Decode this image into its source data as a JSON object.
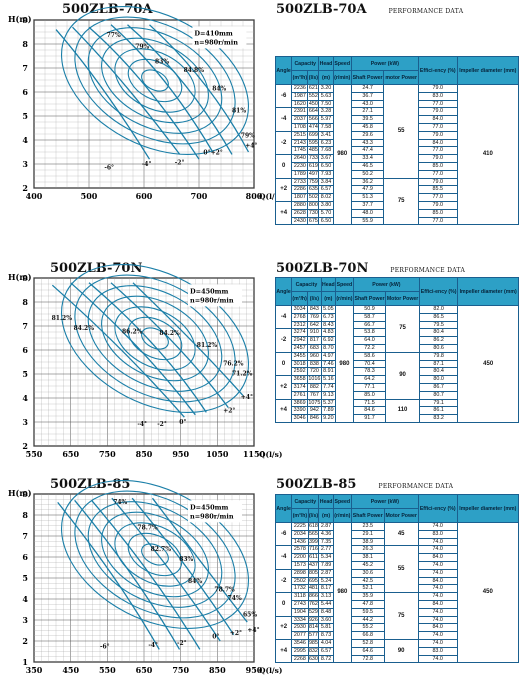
{
  "sections": [
    {
      "id": "s1",
      "model": "500ZLB-70A",
      "perf_label": "PERFORMANCE  DATA",
      "chart_data": {
        "type": "line",
        "title": "500ZLB-70A",
        "xlabel": "Q(l/s)",
        "ylabel": "H(m)",
        "xlim": [
          400,
          800
        ],
        "ylim": [
          2,
          9
        ],
        "xticks": [
          "400",
          "500",
          "600",
          "700",
          "800"
        ],
        "yticks": [
          "2",
          "3",
          "4",
          "5",
          "6",
          "7",
          "8",
          "9"
        ],
        "spec": [
          "D=410mm",
          "n=980r/min"
        ],
        "efficiency_labels": [
          "77%",
          "79%",
          "83%",
          "84.8%",
          "84%",
          "81%",
          "79%"
        ],
        "angle_labels": [
          "+4°",
          "0°+2°",
          "-2°",
          "-4°",
          "-6°"
        ],
        "series": [
          {
            "name": "-6°",
            "x": [
              440,
              520,
              610
            ],
            "y": [
              8.6,
              6.5,
              3.2
            ]
          },
          {
            "name": "-4°",
            "x": [
              470,
              560,
              665
            ],
            "y": [
              8.7,
              6.6,
              3.4
            ]
          },
          {
            "name": "-2°",
            "x": [
              500,
              600,
              700
            ],
            "y": [
              8.7,
              6.7,
              3.2
            ]
          },
          {
            "name": "0°",
            "x": [
              540,
              640,
              725
            ],
            "y": [
              8.8,
              6.8,
              3.5
            ]
          },
          {
            "name": "+2°",
            "x": [
              570,
              680,
              760
            ],
            "y": [
              8.8,
              6.6,
              3.4
            ]
          },
          {
            "name": "+4°",
            "x": [
              610,
              720,
              790
            ],
            "y": [
              8.8,
              6.5,
              3.5
            ]
          }
        ]
      },
      "table": {
        "headers": {
          "angle": "Angle",
          "capacity": "Capacity",
          "cap_unit1": "(m³/h)",
          "cap_unit2": "(l/s)",
          "head": "Head",
          "head_unit": "(m)",
          "speed": "Speed",
          "speed_unit": "(r/min)",
          "power": "Power (kW)",
          "shaft": "Shaft Power",
          "motor": "motor Power",
          "eff": "Effici-ency (%)",
          "dia": "Impeller diameter (mm)"
        },
        "speed": "980",
        "diameter": "410",
        "groups": [
          {
            "angle": "-6",
            "rows": [
              [
                "2236",
                "621",
                "3.20",
                "24.7",
                "79.0"
              ],
              [
                "1987",
                "552",
                "5.63",
                "36.7",
                "83.0"
              ],
              [
                "1620",
                "450",
                "7.50",
                "43.0",
                "77.0"
              ]
            ]
          },
          {
            "angle": "-4",
            "rows": [
              [
                "2391",
                "664",
                "3.28",
                "27.1",
                "79.0"
              ],
              [
                "2037",
                "566",
                "5.97",
                "39.5",
                "84.0"
              ],
              [
                "1708",
                "474",
                "7.58",
                "45.8",
                "77.0"
              ]
            ]
          },
          {
            "angle": "-2",
            "rows": [
              [
                "2515",
                "699",
                "3.41",
                "29.6",
                "79.0"
              ],
              [
                "2143",
                "595",
                "6.23",
                "43.3",
                "84.0"
              ],
              [
                "1745",
                "485",
                "7.68",
                "47.4",
                "77.0"
              ]
            ]
          },
          {
            "angle": "0",
            "rows": [
              [
                "2640",
                "733",
                "3.67",
                "33.4",
                "79.0"
              ],
              [
                "2230",
                "619",
                "6.50",
                "46.5",
                "85.0"
              ],
              [
                "1789",
                "497",
                "7.93",
                "50.2",
                "77.0"
              ]
            ]
          },
          {
            "angle": "+2",
            "rows": [
              [
                "2733",
                "759",
                "3.84",
                "36.2",
                "79.0"
              ],
              [
                "2286",
                "635",
                "6.57",
                "47.9",
                "85.5"
              ],
              [
                "1807",
                "502",
                "8.02",
                "51.3",
                "77.0"
              ]
            ]
          },
          {
            "angle": "+4",
            "rows": [
              [
                "2880",
                "800",
                "3.80",
                "37.7",
                "79.0"
              ],
              [
                "2628",
                "730",
                "5.70",
                "48.0",
                "85.0"
              ],
              [
                "2430",
                "675",
                "6.50",
                "55.9",
                "77.0"
              ]
            ]
          }
        ],
        "motor_groups": [
          {
            "start": 0,
            "span": 12,
            "value": "55"
          },
          {
            "start": 12,
            "span": 6,
            "value": "75"
          }
        ]
      }
    },
    {
      "id": "s2",
      "model": "500ZLB-70N",
      "perf_label": "PERFORMANCE  DATA",
      "chart_data": {
        "type": "line",
        "title": "500ZLB-70N",
        "xlabel": "Q(l/s)",
        "ylabel": "H(m)",
        "xlim": [
          550,
          1150
        ],
        "ylim": [
          2,
          9
        ],
        "xticks": [
          "550",
          "650",
          "750",
          "850",
          "950",
          "1050",
          "1150"
        ],
        "yticks": [
          "2",
          "3",
          "4",
          "5",
          "6",
          "7",
          "8",
          "9"
        ],
        "spec": [
          "D=450mm",
          "n=980r/min"
        ],
        "efficiency_labels": [
          "81.2%",
          "84.2%",
          "86.2%",
          "84.2%",
          "81.2%",
          "76.2%",
          "71.2%"
        ],
        "angle_labels": [
          "+4°",
          "+2°",
          "0°",
          "-2°",
          "-4°"
        ],
        "series": [
          {
            "name": "-4°",
            "x": [
              600,
              800,
              960
            ],
            "y": [
              8.7,
              6.0,
              3.2
            ]
          },
          {
            "name": "-2°",
            "x": [
              650,
              850,
              990
            ],
            "y": [
              8.8,
              6.1,
              3.3
            ]
          },
          {
            "name": "0°",
            "x": [
              700,
              900,
              1020
            ],
            "y": [
              8.8,
              6.2,
              3.4
            ]
          },
          {
            "name": "+2°",
            "x": [
              760,
              960,
              1080
            ],
            "y": [
              8.8,
              6.1,
              3.6
            ]
          },
          {
            "name": "+4°",
            "x": [
              820,
              1010,
              1120
            ],
            "y": [
              8.8,
              6.0,
              4.1
            ]
          }
        ]
      },
      "table": {
        "headers": {
          "angle": "Angle",
          "capacity": "Capacity",
          "cap_unit1": "(m³/h)",
          "cap_unit2": "(l/s)",
          "head": "Head",
          "head_unit": "(m)",
          "speed": "Speed",
          "speed_unit": "(r/min)",
          "power": "Power (kW)",
          "shaft": "Shaft Power",
          "motor": "Motor Power",
          "eff": "Effici-ency (%)",
          "dia": "Impeller diameter (mm)"
        },
        "speed": "980",
        "diameter": "450",
        "groups": [
          {
            "angle": "-4",
            "rows": [
              [
                "3034",
                "843",
                "5.05",
                "50.9",
                "82.0"
              ],
              [
                "2768",
                "769",
                "6.73",
                "58.7",
                "86.5"
              ],
              [
                "2312",
                "642",
                "8.43",
                "66.7",
                "79.5"
              ]
            ]
          },
          {
            "angle": "-2",
            "rows": [
              [
                "3274",
                "910",
                "4.83",
                "53.8",
                "80.4"
              ],
              [
                "2942",
                "817",
                "6.92",
                "64.0",
                "86.2"
              ],
              [
                "2457",
                "683",
                "8.70",
                "72.2",
                "80.6"
              ]
            ]
          },
          {
            "angle": "0",
            "rows": [
              [
                "3455",
                "960",
                "4.97",
                "58.6",
                "79.8"
              ],
              [
                "3018",
                "838",
                "7.46",
                "70.4",
                "87.1"
              ],
              [
                "2592",
                "720",
                "8.91",
                "78.3",
                "80.4"
              ]
            ]
          },
          {
            "angle": "+2",
            "rows": [
              [
                "3658",
                "1016",
                "5.16",
                "64.2",
                "80.0"
              ],
              [
                "3174",
                "882",
                "7.74",
                "77.1",
                "86.7"
              ],
              [
                "2761",
                "767",
                "9.13",
                "85.0",
                "80.7"
              ]
            ]
          },
          {
            "angle": "+4",
            "rows": [
              [
                "3869",
                "1075",
                "5.37",
                "71.5",
                "79.1"
              ],
              [
                "3390",
                "942",
                "7.89",
                "84.6",
                "86.1"
              ],
              [
                "3046",
                "846",
                "9.20",
                "91.7",
                "83.2"
              ]
            ]
          }
        ],
        "motor_groups": [
          {
            "start": 0,
            "span": 6,
            "value": "75"
          },
          {
            "start": 6,
            "span": 6,
            "value": "90"
          },
          {
            "start": 12,
            "span": 3,
            "value": "110"
          }
        ]
      }
    },
    {
      "id": "s3",
      "model": "500ZLB-85",
      "perf_label": "PERFORMANCE  DATA",
      "chart_data": {
        "type": "line",
        "title": "500ZLB-85",
        "xlabel": "Q(l/s)",
        "ylabel": "H(m)",
        "xlim": [
          350,
          1000
        ],
        "ylim": [
          1,
          9
        ],
        "xticks": [
          "350",
          "450",
          "550",
          "650",
          "750",
          "850",
          "950"
        ],
        "yticks": [
          "1",
          "2",
          "3",
          "4",
          "5",
          "6",
          "7",
          "8",
          "9"
        ],
        "spec": [
          "D=450mm",
          "n=980r/min"
        ],
        "efficiency_labels": [
          "74%",
          "78.7%",
          "82.7%",
          "83%",
          "84%",
          "78.7%",
          "74%",
          "65%"
        ],
        "angle_labels": [
          "+4°",
          "+2°",
          "0°",
          "-2°",
          "-4°",
          "-6°"
        ],
        "series": [
          {
            "name": "-6°",
            "x": [
              420,
              600,
              720
            ],
            "y": [
              8.6,
              5.0,
              1.6
            ]
          },
          {
            "name": "-4°",
            "x": [
              470,
              650,
              780
            ],
            "y": [
              8.7,
              5.2,
              1.6
            ]
          },
          {
            "name": "-2°",
            "x": [
              520,
              700,
              840
            ],
            "y": [
              8.7,
              5.3,
              1.6
            ]
          },
          {
            "name": "0°",
            "x": [
              580,
              760,
              900
            ],
            "y": [
              8.8,
              5.4,
              2.0
            ]
          },
          {
            "name": "+2°",
            "x": [
              640,
              810,
              940
            ],
            "y": [
              8.8,
              5.5,
              2.3
            ]
          },
          {
            "name": "+4°",
            "x": [
              700,
              860,
              980
            ],
            "y": [
              8.8,
              5.4,
              2.9
            ]
          }
        ]
      },
      "table": {
        "headers": {
          "angle": "Angle",
          "capacity": "Capacity",
          "cap_unit1": "(m³/h)",
          "cap_unit2": "(l/s)",
          "head": "Head",
          "head_unit": "(m)",
          "speed": "Speed",
          "speed_unit": "(r/min)",
          "power": "Power (kW)",
          "shaft": "Shaft Power",
          "motor": "Motor Power",
          "eff": "Effici-ency (%)",
          "dia": "Impeller diameter (mm)"
        },
        "speed": "980",
        "diameter": "450",
        "groups": [
          {
            "angle": "-6",
            "rows": [
              [
                "2225",
                "618",
                "2.87",
                "23.5",
                "74.0"
              ],
              [
                "2034",
                "565",
                "4.36",
                "29.1",
                "83.0"
              ],
              [
                "1436",
                "399",
                "7.35",
                "38.9",
                "74.0"
              ]
            ]
          },
          {
            "angle": "-4",
            "rows": [
              [
                "2578",
                "716",
                "2.77",
                "26.3",
                "74.0"
              ],
              [
                "2200",
                "611",
                "5.34",
                "38.1",
                "84.0"
              ],
              [
                "1573",
                "437",
                "7.89",
                "45.2",
                "74.0"
              ]
            ]
          },
          {
            "angle": "-2",
            "rows": [
              [
                "2898",
                "805",
                "2.87",
                "30.6",
                "74.0"
              ],
              [
                "2502",
                "695",
                "5.24",
                "42.5",
                "84.0"
              ],
              [
                "1732",
                "481",
                "8.17",
                "52.1",
                "74.0"
              ]
            ]
          },
          {
            "angle": "0",
            "rows": [
              [
                "3118",
                "866",
                "3.13",
                "35.9",
                "74.0"
              ],
              [
                "2743",
                "762",
                "5.44",
                "47.8",
                "84.0"
              ],
              [
                "1904",
                "529",
                "8.48",
                "59.5",
                "74.0"
              ]
            ]
          },
          {
            "angle": "+2",
            "rows": [
              [
                "3334",
                "926",
                "3.60",
                "44.2",
                "74.0"
              ],
              [
                "2930",
                "814",
                "5.81",
                "55.2",
                "84.0"
              ],
              [
                "2077",
                "577",
                "8.73",
                "66.8",
                "74.0"
              ]
            ]
          },
          {
            "angle": "+4",
            "rows": [
              [
                "3546",
                "985",
                "4.04",
                "52.8",
                "74.0"
              ],
              [
                "2995",
                "832",
                "6.57",
                "64.6",
                "83.0"
              ],
              [
                "2268",
                "630",
                "8.72",
                "72.8",
                "74.0"
              ]
            ]
          }
        ],
        "motor_groups": [
          {
            "start": 0,
            "span": 3,
            "value": "45"
          },
          {
            "start": 3,
            "span": 6,
            "value": "55"
          },
          {
            "start": 9,
            "span": 6,
            "value": "75"
          },
          {
            "start": 15,
            "span": 3,
            "value": "90"
          }
        ]
      }
    }
  ]
}
